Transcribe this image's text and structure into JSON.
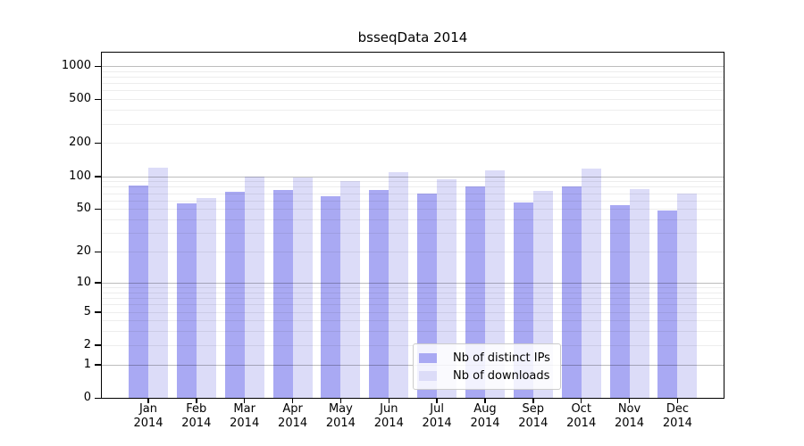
{
  "figure": {
    "background": "#ffffff"
  },
  "chart_data": {
    "type": "bar",
    "title": "bsseqData 2014",
    "year": "2014",
    "months": [
      "Jan",
      "Feb",
      "Mar",
      "Apr",
      "May",
      "Jun",
      "Jul",
      "Aug",
      "Sep",
      "Oct",
      "Nov",
      "Dec"
    ],
    "categories": [
      "Jan 2014",
      "Feb 2014",
      "Mar 2014",
      "Apr 2014",
      "May 2014",
      "Jun 2014",
      "Jul 2014",
      "Aug 2014",
      "Sep 2014",
      "Oct 2014",
      "Nov 2014",
      "Dec 2014"
    ],
    "series": [
      {
        "name": "Nb of distinct IPs",
        "color": "#a9a9f3",
        "values": [
          82,
          56,
          72,
          75,
          66,
          75,
          70,
          80,
          57,
          81,
          54,
          48
        ]
      },
      {
        "name": "Nb of downloads",
        "color": "#dcdcf8",
        "values": [
          119,
          63,
          99,
          98,
          90,
          108,
          93,
          112,
          74,
          117,
          76,
          70
        ]
      }
    ],
    "y_scale": "log1p",
    "ylim": [
      0,
      1000
    ],
    "y_ticks": [
      0,
      1,
      2,
      5,
      10,
      20,
      50,
      100,
      200,
      500,
      1000
    ],
    "y_major_gridlines": [
      1,
      10,
      100,
      1000
    ],
    "y_minor_gridlines": [
      2,
      3,
      4,
      5,
      6,
      7,
      8,
      9,
      20,
      30,
      40,
      50,
      60,
      70,
      80,
      90,
      200,
      300,
      400,
      500,
      600,
      700,
      800,
      900
    ],
    "grid": true,
    "legend_position": "inside-bottom-center"
  },
  "colors": {
    "grid_major": "rgba(0,0,0,0.26)",
    "grid_minor": "rgba(0,0,0,0.07)",
    "axis": "#000000",
    "text": "#000000",
    "legend_border": "#cccccc",
    "legend_background": "rgba(255,255,255,0.85)"
  }
}
